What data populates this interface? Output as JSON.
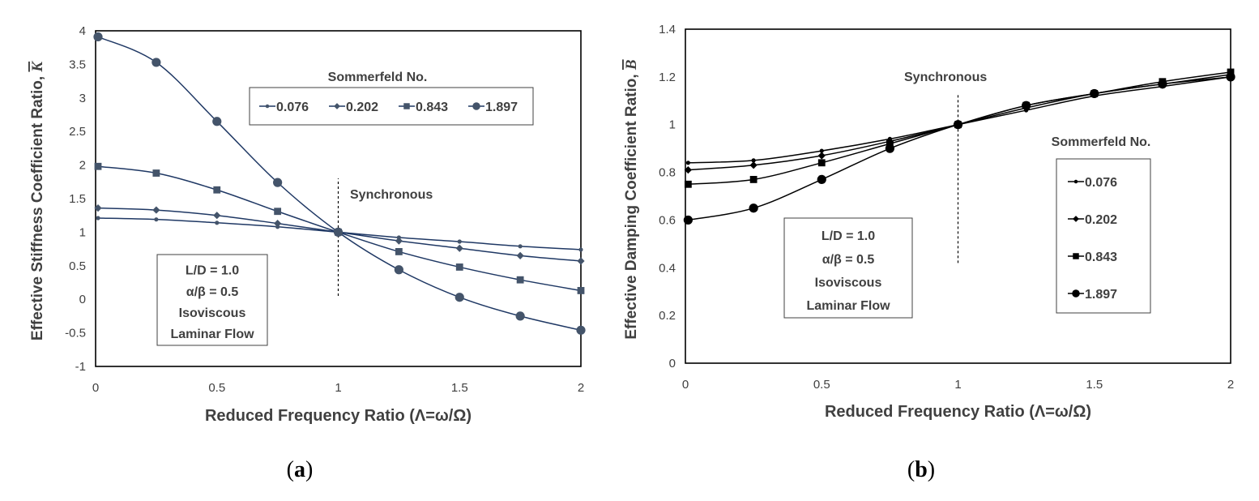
{
  "colors": {
    "axis": "#000000",
    "text": "#404040",
    "panel_a_series": "#1f3864",
    "panel_a_marker": "#44546a",
    "panel_b_series": "#000000"
  },
  "chart_data": [
    {
      "id": "a",
      "type": "line",
      "caption": {
        "open": "(",
        "letter": "a",
        "close": ")"
      },
      "xlabel": "Reduced Frequency Ratio (Λ=ω/Ω)",
      "ylabel": "Effective Stiffness Coefficient Ratio, ",
      "ylabel_symbol": "K",
      "xlim": [
        0,
        2
      ],
      "ylim": [
        -1,
        4
      ],
      "xticks": [
        0,
        0.5,
        1,
        1.5,
        2
      ],
      "xtick_labels": [
        "0",
        "0.5",
        "1",
        "1.5",
        "2"
      ],
      "yticks": [
        -1,
        -0.5,
        0,
        0.5,
        1,
        1.5,
        2,
        2.5,
        3,
        3.5,
        4
      ],
      "ytick_labels": [
        "-1",
        "-0.5",
        "0",
        "0.5",
        "1",
        "1.5",
        "2",
        "2.5",
        "3",
        "3.5",
        "4"
      ],
      "grid": false,
      "legend_title": "Sommerfeld No.",
      "legend_position": "top-right",
      "legend_layout": "horizontal",
      "synchronous_label": "Synchronous",
      "synchronous_x": 1,
      "synchronous_range": [
        0.05,
        1.8
      ],
      "params": [
        "L/D = 1.0",
        "α/β = 0.5",
        "Isoviscous",
        "Laminar Flow"
      ],
      "x": [
        0.01,
        0.25,
        0.5,
        0.75,
        1,
        1.25,
        1.5,
        1.75,
        2
      ],
      "series": [
        {
          "name": "0.076",
          "marker": "dot",
          "values": [
            1.21,
            1.19,
            1.14,
            1.08,
            1.0,
            0.92,
            0.86,
            0.79,
            0.74
          ]
        },
        {
          "name": "0.202",
          "marker": "diamond",
          "values": [
            1.36,
            1.33,
            1.25,
            1.13,
            1.0,
            0.87,
            0.76,
            0.65,
            0.57
          ]
        },
        {
          "name": "0.843",
          "marker": "square",
          "values": [
            1.98,
            1.88,
            1.63,
            1.31,
            1.0,
            0.71,
            0.48,
            0.29,
            0.13
          ]
        },
        {
          "name": "1.897",
          "marker": "circle",
          "values": [
            3.91,
            3.53,
            2.65,
            1.74,
            1.0,
            0.44,
            0.03,
            -0.25,
            -0.46
          ]
        }
      ]
    },
    {
      "id": "b",
      "type": "line",
      "caption": {
        "open": "(",
        "letter": "b",
        "close": ")"
      },
      "xlabel": "Reduced Frequency Ratio (Λ=ω/Ω)",
      "ylabel": "Effective Damping Coefficient Ratio, ",
      "ylabel_symbol": "B",
      "xlim": [
        0,
        2
      ],
      "ylim": [
        0,
        1.4
      ],
      "xticks": [
        0,
        0.5,
        1,
        1.5,
        2
      ],
      "xtick_labels": [
        "0",
        "0.5",
        "1",
        "1.5",
        "2"
      ],
      "yticks": [
        0,
        0.2,
        0.4,
        0.6,
        0.8,
        1,
        1.2,
        1.4
      ],
      "ytick_labels": [
        "0",
        "0.2",
        "0.4",
        "0.6",
        "0.8",
        "1",
        "1.2",
        "1.4"
      ],
      "grid": false,
      "legend_title": "Sommerfeld No.",
      "legend_position": "right",
      "legend_layout": "vertical",
      "synchronous_label": "Synchronous",
      "synchronous_x": 1,
      "synchronous_range": [
        0.42,
        1.13
      ],
      "params": [
        "L/D = 1.0",
        "α/β = 0.5",
        "Isoviscous",
        "Laminar Flow"
      ],
      "x": [
        0.01,
        0.25,
        0.5,
        0.75,
        1,
        1.25,
        1.5,
        1.75,
        2
      ],
      "series": [
        {
          "name": "0.076",
          "marker": "dot",
          "values": [
            0.84,
            0.85,
            0.89,
            0.94,
            1.0,
            1.06,
            1.12,
            1.16,
            1.2
          ]
        },
        {
          "name": "0.202",
          "marker": "diamond",
          "values": [
            0.81,
            0.83,
            0.87,
            0.93,
            1.0,
            1.07,
            1.13,
            1.17,
            1.21
          ]
        },
        {
          "name": "0.843",
          "marker": "square",
          "values": [
            0.75,
            0.77,
            0.84,
            0.92,
            1.0,
            1.08,
            1.13,
            1.18,
            1.22
          ]
        },
        {
          "name": "1.897",
          "marker": "circle",
          "values": [
            0.6,
            0.65,
            0.77,
            0.9,
            1.0,
            1.08,
            1.13,
            1.17,
            1.2
          ]
        }
      ]
    }
  ]
}
